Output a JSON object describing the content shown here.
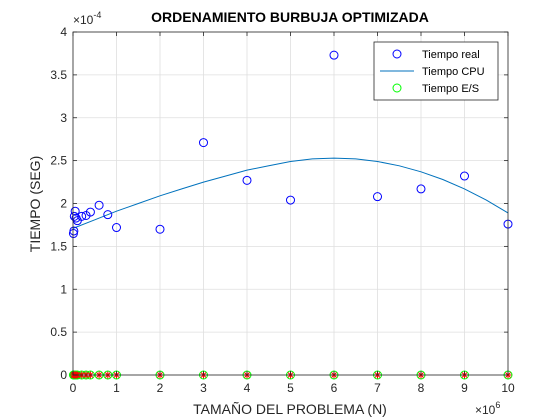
{
  "chart_data": {
    "type": "scatter",
    "title": "ORDENAMIENTO BURBUJA OPTIMIZADA",
    "xlabel": "TAMAÑO DEL PROBLEMA (N)",
    "ylabel": "TIEMPO (SEG)",
    "xlim": [
      0,
      10
    ],
    "ylim": [
      0,
      4
    ],
    "x_multiplier": {
      "base": "×10",
      "exp": "6"
    },
    "y_multiplier": {
      "base": "×10",
      "exp": "-4"
    },
    "xticks": [
      "0",
      "1",
      "2",
      "3",
      "4",
      "5",
      "6",
      "7",
      "8",
      "9",
      "10"
    ],
    "yticks": [
      "0",
      "0.5",
      "1",
      "1.5",
      "2",
      "2.5",
      "3",
      "3.5",
      "4"
    ],
    "grid": true,
    "legend_position": "top-right",
    "series": [
      {
        "name": "Tiempo real",
        "kind": "scatter",
        "marker": "circle",
        "color": "#0000ff",
        "x": [
          0.01,
          0.02,
          0.03,
          0.05,
          0.07,
          0.1,
          0.2,
          0.3,
          0.4,
          0.6,
          0.8,
          1,
          2,
          3,
          4,
          5,
          6,
          7,
          8,
          9,
          10
        ],
        "y": [
          1.65,
          1.68,
          1.85,
          1.91,
          1.83,
          1.8,
          1.85,
          1.86,
          1.9,
          1.98,
          1.87,
          1.72,
          1.7,
          2.71,
          2.27,
          2.04,
          3.73,
          2.08,
          2.17,
          2.32,
          1.76
        ]
      },
      {
        "name": "Tiempo CPU",
        "kind": "line",
        "color": "#0072bd",
        "x": [
          0,
          0.5,
          1,
          1.5,
          2,
          2.5,
          3,
          3.5,
          4,
          4.5,
          5,
          5.5,
          6,
          6.5,
          7,
          7.5,
          8,
          8.5,
          9,
          9.5,
          10
        ],
        "y": [
          1.71,
          1.81,
          1.91,
          2.0,
          2.09,
          2.17,
          2.25,
          2.32,
          2.39,
          2.44,
          2.49,
          2.52,
          2.53,
          2.52,
          2.49,
          2.44,
          2.37,
          2.28,
          2.17,
          2.04,
          1.89
        ]
      },
      {
        "name": "Tiempo E/S",
        "kind": "scatter",
        "marker": "circle",
        "color": "#00ff00",
        "x": [
          0.01,
          0.02,
          0.03,
          0.05,
          0.07,
          0.1,
          0.2,
          0.3,
          0.4,
          0.6,
          0.8,
          1,
          2,
          3,
          4,
          5,
          6,
          7,
          8,
          9,
          10
        ],
        "y": [
          0,
          0,
          0,
          0,
          0,
          0,
          0,
          0,
          0,
          0,
          0,
          0,
          0,
          0,
          0,
          0,
          0,
          0,
          0,
          0,
          0
        ]
      },
      {
        "kind": "scatter",
        "marker": "star",
        "color": "#ff0000",
        "x": [
          0.01,
          0.02,
          0.03,
          0.05,
          0.07,
          0.1,
          0.2,
          0.3,
          0.4,
          0.6,
          0.8,
          1,
          2,
          3,
          4,
          5,
          6,
          7,
          8,
          9,
          10
        ],
        "y": [
          0,
          0,
          0,
          0,
          0,
          0,
          0,
          0,
          0,
          0,
          0,
          0,
          0,
          0,
          0,
          0,
          0,
          0,
          0,
          0,
          0
        ]
      }
    ]
  }
}
